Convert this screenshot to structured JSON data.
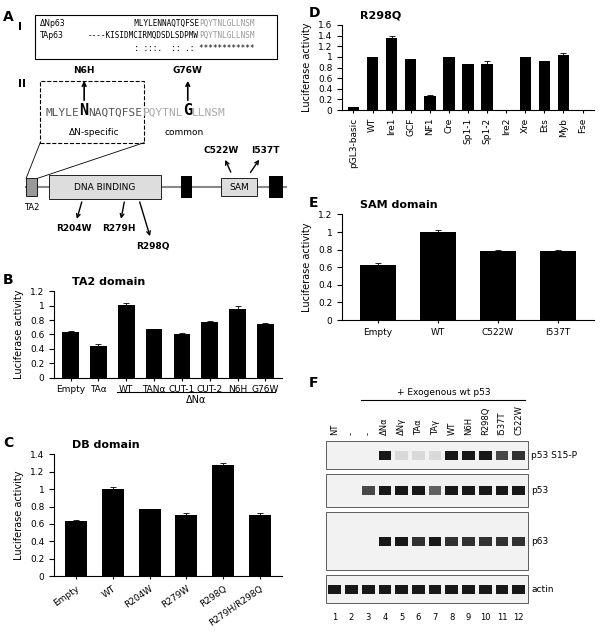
{
  "diagram": {
    "panel": "A",
    "part_I": {
      "label": "I",
      "rows": [
        {
          "name": "ΔNp63",
          "specific": "MLYLENNAQTQFSE",
          "common": "PQYTNLGLLNSM"
        },
        {
          "name": "TAp63",
          "specific": "----KISIDMCIRMQDSDLSDPMW",
          "common": "PQYTNLGLLNSM"
        }
      ],
      "consensus": "          : :::.  :: .: ************"
    },
    "part_II": {
      "label": "II",
      "sequence": [
        {
          "text": "MLYLE",
          "region": "specific"
        },
        {
          "text": "N",
          "region": "specific",
          "mutation": "N6H"
        },
        {
          "text": "NAQTQFSE",
          "region": "specific"
        },
        {
          "text": "PQYTNL",
          "region": "common"
        },
        {
          "text": "G",
          "region": "common",
          "mutation": "G76W"
        },
        {
          "text": "LLNSM",
          "region": "common"
        }
      ],
      "region_labels": {
        "specific": "ΔN-specific",
        "common": "common"
      }
    },
    "schematic": {
      "domains": [
        "TA2",
        "DNA BINDING",
        "SAM"
      ],
      "mutations_above": [
        "C522W",
        "I537T"
      ],
      "mutations_below": [
        "R204W",
        "R279H",
        "R298Q"
      ]
    }
  },
  "chart_data": [
    {
      "panel": "B",
      "type": "bar",
      "title": "TA2 domain",
      "y_label": "Luciferase activity",
      "categories": [
        "Empty",
        "TAα",
        "WT",
        "TANα",
        "CUT-1",
        "CUT-2",
        "N6H",
        "G76W"
      ],
      "values": [
        0.63,
        0.44,
        1.01,
        0.67,
        0.61,
        0.77,
        0.95,
        0.75
      ],
      "errors": [
        0.02,
        0.02,
        0.02,
        0.01,
        0.005,
        0.01,
        0.04,
        0.01
      ],
      "group": {
        "label": "ΔNα",
        "categories": [
          "WT",
          "TANα",
          "CUT-1",
          "CUT-2",
          "N6H",
          "G76W"
        ]
      },
      "color": "#000000",
      "ylim": [
        0,
        1.2
      ],
      "yticks": [
        0,
        0.2,
        0.4,
        0.6,
        0.8,
        1,
        1.2
      ],
      "grid": false
    },
    {
      "panel": "C",
      "type": "bar",
      "title": "DB domain",
      "y_label": "Luciferase activity",
      "categories": [
        "Empty",
        "WT",
        "R204W",
        "R279W",
        "R298Q",
        "R279H/R298Q"
      ],
      "values": [
        0.63,
        1.0,
        0.77,
        0.7,
        1.28,
        0.7
      ],
      "errors": [
        0.02,
        0.02,
        0.005,
        0.03,
        0.02,
        0.03
      ],
      "color": "#000000",
      "ylim": [
        0,
        1.4
      ],
      "yticks": [
        0,
        0.2,
        0.4,
        0.6,
        0.8,
        1,
        1.2,
        1.4
      ],
      "grid": false
    },
    {
      "panel": "D",
      "type": "bar",
      "title": "R298Q",
      "y_label": "Luciferase activity",
      "categories": [
        "pGL3-basic",
        "WT",
        "Ire1",
        "GCF",
        "NF1",
        "Cre",
        "Sp1-1",
        "Sp1-2",
        "Ire2",
        "Xre",
        "Ets",
        "Myb",
        "Fse"
      ],
      "values": [
        0.05,
        1.0,
        1.35,
        0.96,
        0.27,
        1.0,
        0.86,
        0.87,
        0.0,
        0.99,
        0.93,
        1.04,
        0.0
      ],
      "errors": [
        0.01,
        0,
        0.05,
        0,
        0.01,
        0,
        0.01,
        0.05,
        0,
        0.01,
        0,
        0.03,
        0
      ],
      "color": "#000000",
      "ylim": [
        0,
        1.6
      ],
      "yticks": [
        0,
        0.2,
        0.4,
        0.6,
        0.8,
        1,
        1.2,
        1.4,
        1.6
      ],
      "grid": false
    },
    {
      "panel": "E",
      "type": "bar",
      "title": "SAM domain",
      "y_label": "Luciferase activity",
      "categories": [
        "Empty",
        "WT",
        "C522W",
        "I537T"
      ],
      "values": [
        0.63,
        1.0,
        0.78,
        0.78
      ],
      "errors": [
        0.02,
        0.02,
        0.01,
        0.01
      ],
      "color": "#000000",
      "ylim": [
        0,
        1.2
      ],
      "yticks": [
        0,
        0.2,
        0.4,
        0.6,
        0.8,
        1,
        1.2
      ],
      "grid": false
    }
  ],
  "blot": {
    "panel": "F",
    "header": "+ Exogenous wt p53",
    "lanes": [
      "NT",
      "-",
      "-",
      "ΔNα",
      "ΔNγ",
      "TAα",
      "TAγ",
      "WT",
      "N6H",
      "R298Q",
      "I537T",
      "C522W"
    ],
    "exogenous_p53": [
      false,
      false,
      true,
      true,
      true,
      true,
      true,
      true,
      true,
      true,
      true,
      true
    ],
    "lane_numbers": [
      1,
      2,
      3,
      4,
      5,
      6,
      7,
      8,
      9,
      10,
      11,
      12
    ],
    "rows": [
      {
        "name": "p53 S15-P",
        "intensity": [
          0,
          0,
          0,
          0.9,
          0.1,
          0.1,
          0.1,
          0.9,
          0.9,
          0.9,
          0.7,
          0.8
        ]
      },
      {
        "name": "p53",
        "intensity": [
          0,
          0,
          0.7,
          0.9,
          0.9,
          0.9,
          0.6,
          0.9,
          0.9,
          0.9,
          0.9,
          0.9
        ]
      },
      {
        "name": "p63",
        "intensity": [
          0,
          0,
          0,
          0.9,
          0.9,
          0.8,
          0.9,
          0.8,
          0.8,
          0.8,
          0.8,
          0.8
        ]
      },
      {
        "name": "actin",
        "intensity": [
          0.9,
          0.9,
          0.9,
          0.9,
          0.9,
          0.9,
          0.9,
          0.9,
          0.9,
          0.9,
          0.9,
          0.9
        ]
      }
    ]
  }
}
